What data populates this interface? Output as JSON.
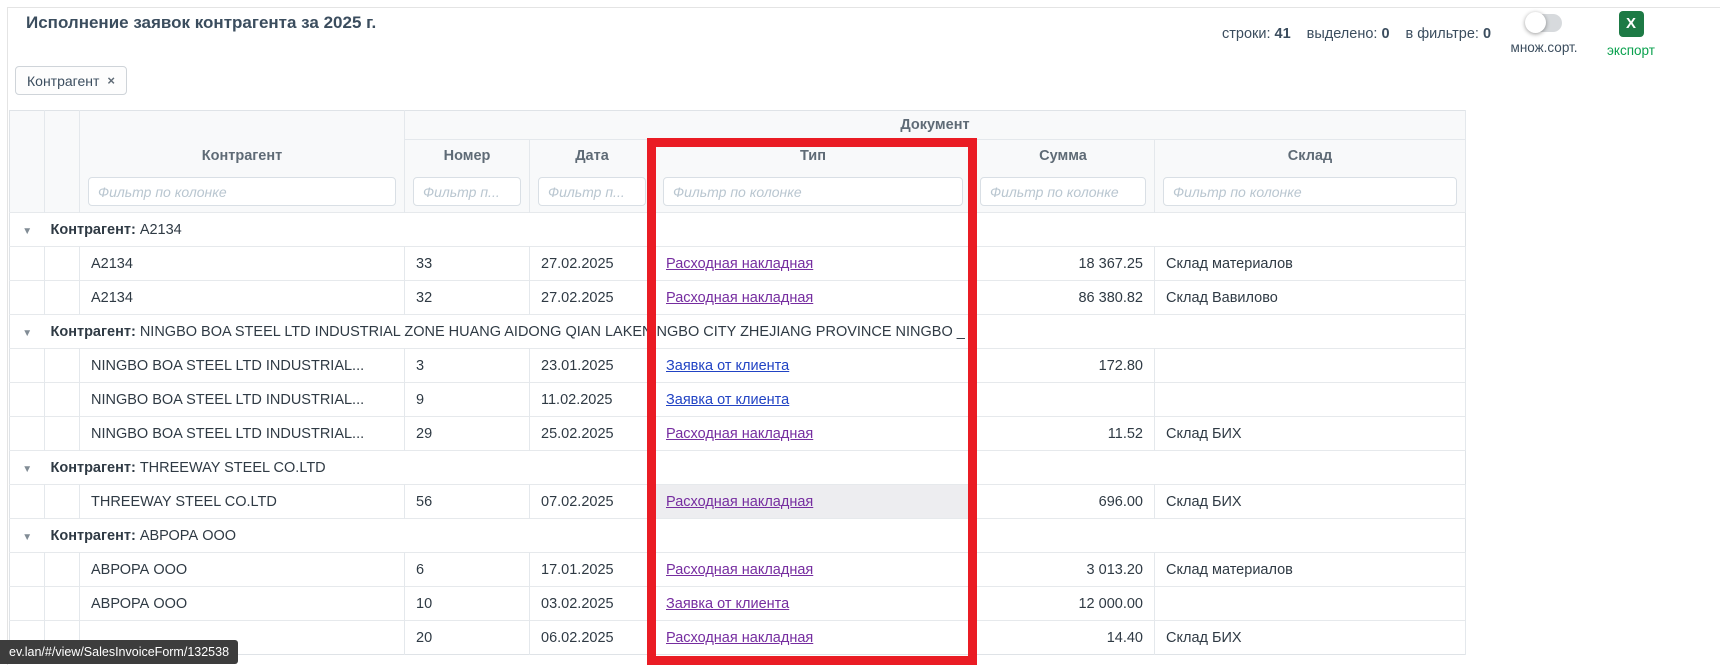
{
  "header": {
    "title": "Исполнение заявок контрагента за 2025 г.",
    "stats": [
      {
        "label": "строки:",
        "value": "41"
      },
      {
        "label": "выделено:",
        "value": "0"
      },
      {
        "label": "в фильтре:",
        "value": "0"
      }
    ],
    "multisort_label": "множ.сорт.",
    "export_label": "экспорт",
    "export_icon_letter": "X",
    "chip": {
      "label": "Контрагент",
      "close": "×"
    }
  },
  "table": {
    "group_header": "Документ",
    "group_label_prefix": "Контрагент:",
    "collapse_icon": "▼",
    "columns": [
      {
        "label": "Контрагент",
        "filter_placeholder": "Фильтр по колонке"
      },
      {
        "label": "Номер",
        "filter_placeholder": "Фильтр п..."
      },
      {
        "label": "Дата",
        "filter_placeholder": "Фильтр п..."
      },
      {
        "label": "Тип",
        "filter_placeholder": "Фильтр по колонке"
      },
      {
        "label": "Сумма",
        "filter_placeholder": "Фильтр по колонке"
      },
      {
        "label": "Склад",
        "filter_placeholder": "Фильтр по колонке"
      }
    ],
    "rows": [
      {
        "kind": "group",
        "name": "A2134"
      },
      {
        "kind": "data",
        "contragent": "A2134",
        "number": "33",
        "date": "27.02.2025",
        "type": "Расходная накладная",
        "type_visited": true,
        "sum": "18 367.25",
        "warehouse": "Склад материалов"
      },
      {
        "kind": "data",
        "contragent": "A2134",
        "number": "32",
        "date": "27.02.2025",
        "type": "Расходная накладная",
        "type_visited": true,
        "sum": "86 380.82",
        "warehouse": "Склад Вавилово"
      },
      {
        "kind": "group",
        "name": "NINGBO BOA STEEL LTD INDUSTRIAL ZONE HUANG AIDONG QIAN LAKENINGBO CITY ZHEJIANG PROVINCE NINGBO _"
      },
      {
        "kind": "data",
        "contragent": "NINGBO BOA STEEL LTD INDUSTRIAL...",
        "number": "3",
        "date": "23.01.2025",
        "type": "Заявка от клиента",
        "type_visited": false,
        "sum": "172.80",
        "warehouse": ""
      },
      {
        "kind": "data",
        "contragent": "NINGBO BOA STEEL LTD INDUSTRIAL...",
        "number": "9",
        "date": "11.02.2025",
        "type": "Заявка от клиента",
        "type_visited": false,
        "sum": "",
        "warehouse": ""
      },
      {
        "kind": "data",
        "contragent": "NINGBO BOA STEEL LTD INDUSTRIAL...",
        "number": "29",
        "date": "25.02.2025",
        "type": "Расходная накладная",
        "type_visited": true,
        "sum": "11.52",
        "warehouse": "Склад БИХ"
      },
      {
        "kind": "group",
        "name": "THREEWAY STEEL CO.LTD"
      },
      {
        "kind": "data",
        "contragent": "THREEWAY STEEL CO.LTD",
        "number": "56",
        "date": "07.02.2025",
        "type": "Расходная накладная",
        "type_visited": true,
        "sum": "696.00",
        "warehouse": "Склад БИХ",
        "type_cell_highlight": true
      },
      {
        "kind": "group",
        "name": "АВРОРА ООО"
      },
      {
        "kind": "data",
        "contragent": "АВРОРА ООО",
        "number": "6",
        "date": "17.01.2025",
        "type": "Расходная накладная",
        "type_visited": true,
        "sum": "3 013.20",
        "warehouse": "Склад материалов"
      },
      {
        "kind": "data",
        "contragent": "АВРОРА ООО",
        "number": "10",
        "date": "03.02.2025",
        "type": "Заявка от клиента",
        "type_visited": true,
        "sum": "12 000.00",
        "warehouse": ""
      },
      {
        "kind": "data",
        "contragent": "",
        "number": "20",
        "date": "06.02.2025",
        "type": "Расходная накладная",
        "type_visited": true,
        "sum": "14.40",
        "warehouse": "Склад БИХ"
      }
    ]
  },
  "statusbar": {
    "url": "ev.lan/#/view/SalesInvoiceForm/132538"
  },
  "colors": {
    "accent_red": "#ea1c24",
    "link_blue": "#2143c4",
    "link_visited_purple": "#762da0",
    "export_green": "#0aa14e",
    "export_icon_green": "#1d7a45",
    "title_text": "#3b4d5e"
  }
}
